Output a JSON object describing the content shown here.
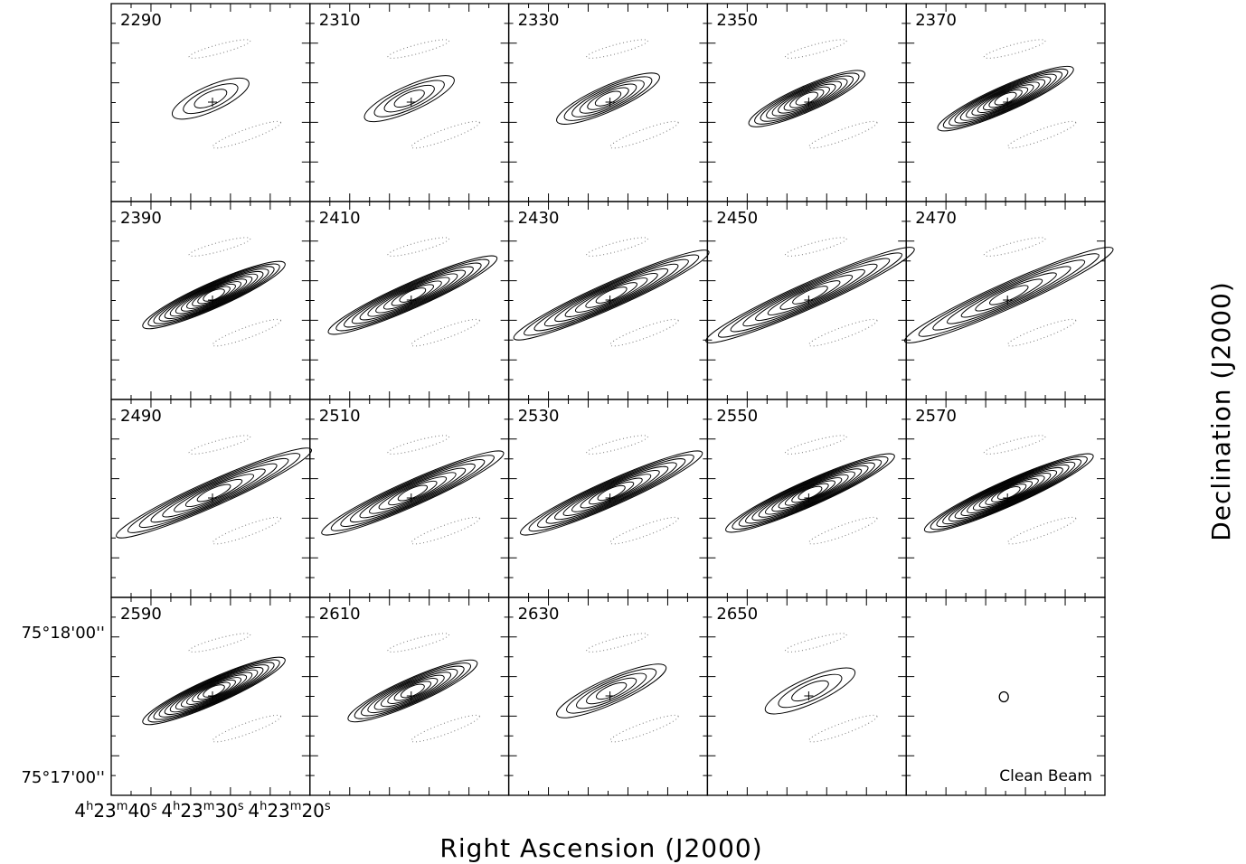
{
  "panels": [
    "2290",
    "2310",
    "2330",
    "2350",
    "2370",
    "2390",
    "2410",
    "2430",
    "2450",
    "2470",
    "2490",
    "2510",
    "2530",
    "2550",
    "2570",
    "2590",
    "2610",
    "2630",
    "2650"
  ],
  "beam_label": "Clean Beam",
  "y_tick_labels": [
    "75°18'00''",
    "75°17'00''"
  ],
  "x_tick_labels": [
    "4h23m40s",
    "4h23m30s",
    "4h23m20s"
  ],
  "x_axis_title": "Right Ascension (J2000)",
  "y_axis_title": "Declination (J2000)"
}
